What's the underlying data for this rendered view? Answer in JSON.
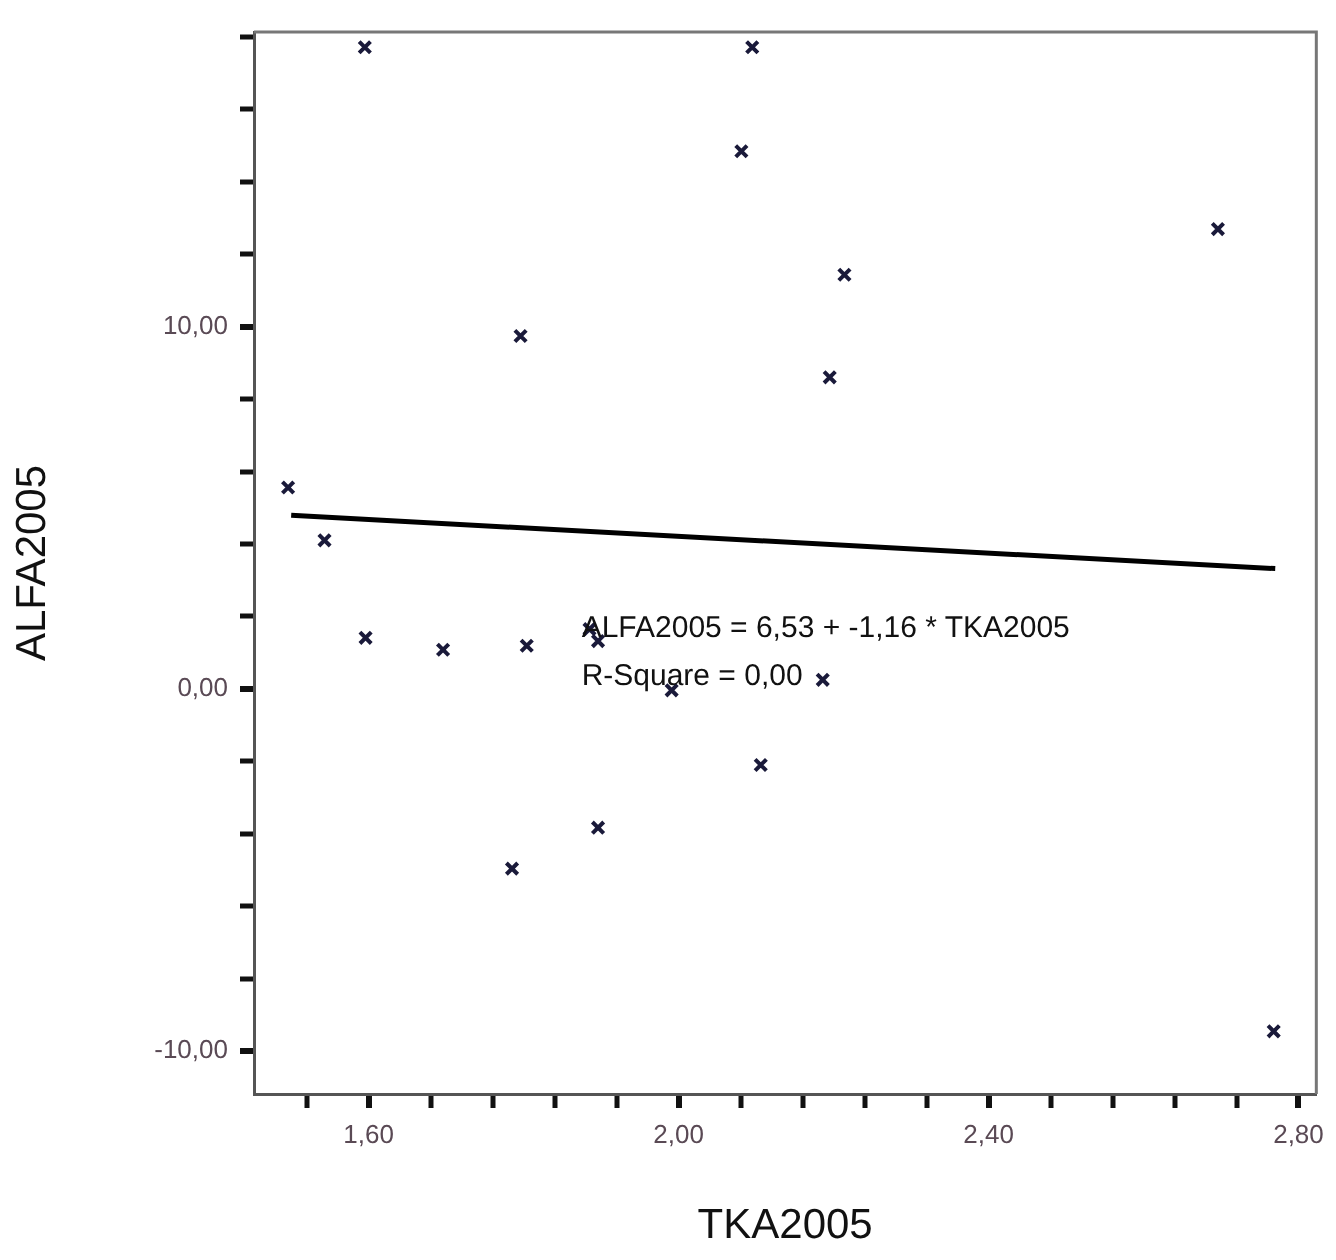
{
  "chart_data": {
    "type": "scatter",
    "xlabel": "TKA2005",
    "ylabel": "ALFA2005",
    "xlim": [
      1.452,
      2.823
    ],
    "ylim": [
      -11.18,
      18.13
    ],
    "xticks": [
      {
        "value": 1.52,
        "label": null
      },
      {
        "value": 1.6,
        "label": "1,60"
      },
      {
        "value": 1.68,
        "label": null
      },
      {
        "value": 1.76,
        "label": null
      },
      {
        "value": 1.84,
        "label": null
      },
      {
        "value": 1.92,
        "label": null
      },
      {
        "value": 2.0,
        "label": "2,00"
      },
      {
        "value": 2.08,
        "label": null
      },
      {
        "value": 2.16,
        "label": null
      },
      {
        "value": 2.24,
        "label": null
      },
      {
        "value": 2.32,
        "label": null
      },
      {
        "value": 2.4,
        "label": "2,40"
      },
      {
        "value": 2.48,
        "label": null
      },
      {
        "value": 2.56,
        "label": null
      },
      {
        "value": 2.64,
        "label": null
      },
      {
        "value": 2.72,
        "label": null
      },
      {
        "value": 2.8,
        "label": "2,80"
      }
    ],
    "yticks": [
      {
        "value": -10,
        "label": "-10,00"
      },
      {
        "value": -8,
        "label": null
      },
      {
        "value": -6,
        "label": null
      },
      {
        "value": -4,
        "label": null
      },
      {
        "value": -2,
        "label": null
      },
      {
        "value": 0,
        "label": "0,00"
      },
      {
        "value": 2,
        "label": null
      },
      {
        "value": 4,
        "label": null
      },
      {
        "value": 6,
        "label": null
      },
      {
        "value": 8,
        "label": null
      },
      {
        "value": 10,
        "label": "10,00"
      },
      {
        "value": 12,
        "label": null
      },
      {
        "value": 14,
        "label": null
      },
      {
        "value": 16,
        "label": null
      },
      {
        "value": 18,
        "label": null
      }
    ],
    "marker": "cross",
    "legend": false,
    "grid": false,
    "series": [
      {
        "color": "#1a1a3a",
        "x": [
          1.496,
          1.543,
          1.596,
          1.595,
          1.696,
          1.804,
          1.796,
          1.785,
          1.885,
          1.896,
          1.896,
          1.991,
          2.081,
          2.095,
          2.106,
          2.186,
          2.195,
          2.214,
          2.696,
          2.768
        ],
        "values": [
          5.56,
          4.1,
          1.41,
          17.71,
          1.08,
          1.19,
          9.74,
          -4.96,
          1.65,
          1.32,
          -3.83,
          -0.04,
          14.84,
          17.71,
          -2.1,
          0.25,
          8.6,
          11.43,
          12.69,
          -9.45
        ]
      },
      {
        "type": "line",
        "color": "#000000",
        "marker": "none",
        "x": [
          1.5,
          2.77
        ],
        "values": [
          4.79,
          3.32
        ]
      }
    ],
    "annotations": [
      "ALFA2005 = 6,53 + -1,16 * TKA2005",
      "R-Square = 0,00"
    ]
  }
}
